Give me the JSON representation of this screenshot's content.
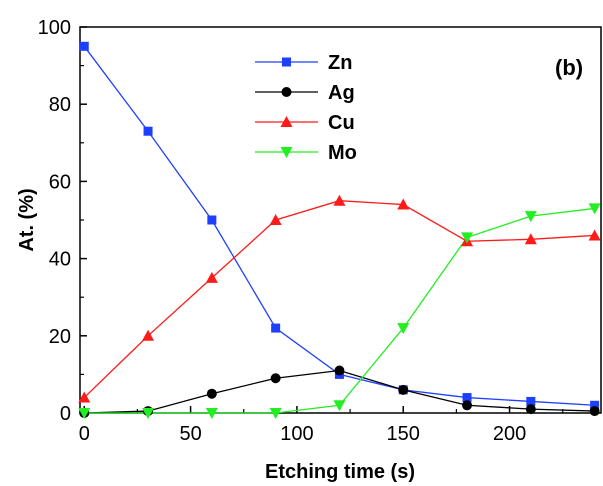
{
  "chart_data": {
    "type": "line",
    "xlabel": "Etching time (s)",
    "ylabel": "At. (%)",
    "xlim": [
      -2,
      243
    ],
    "ylim": [
      0,
      100
    ],
    "xticks": [
      0,
      50,
      100,
      150,
      200
    ],
    "yticks": [
      0,
      20,
      40,
      60,
      80,
      100
    ],
    "grid": false,
    "legend_position": "top-center",
    "annotation": "(b)",
    "x": [
      0,
      30,
      60,
      90,
      120,
      150,
      180,
      210,
      240
    ],
    "series": [
      {
        "name": "Zn",
        "color": "#1f3fff",
        "marker": "square",
        "values": [
          95,
          73,
          50,
          22,
          10,
          6,
          4,
          3,
          2
        ]
      },
      {
        "name": "Ag",
        "color": "#000000",
        "marker": "circle",
        "values": [
          0,
          0.5,
          5,
          9,
          11,
          6,
          2,
          1,
          0.5
        ]
      },
      {
        "name": "Cu",
        "color": "#ff1a1a",
        "marker": "triangle-up",
        "values": [
          4,
          20,
          35,
          50,
          55,
          54,
          44.5,
          45,
          46
        ]
      },
      {
        "name": "Mo",
        "color": "#22ee22",
        "marker": "triangle-down",
        "values": [
          0,
          0,
          0,
          0,
          2,
          22,
          45.5,
          51,
          53
        ]
      }
    ]
  }
}
